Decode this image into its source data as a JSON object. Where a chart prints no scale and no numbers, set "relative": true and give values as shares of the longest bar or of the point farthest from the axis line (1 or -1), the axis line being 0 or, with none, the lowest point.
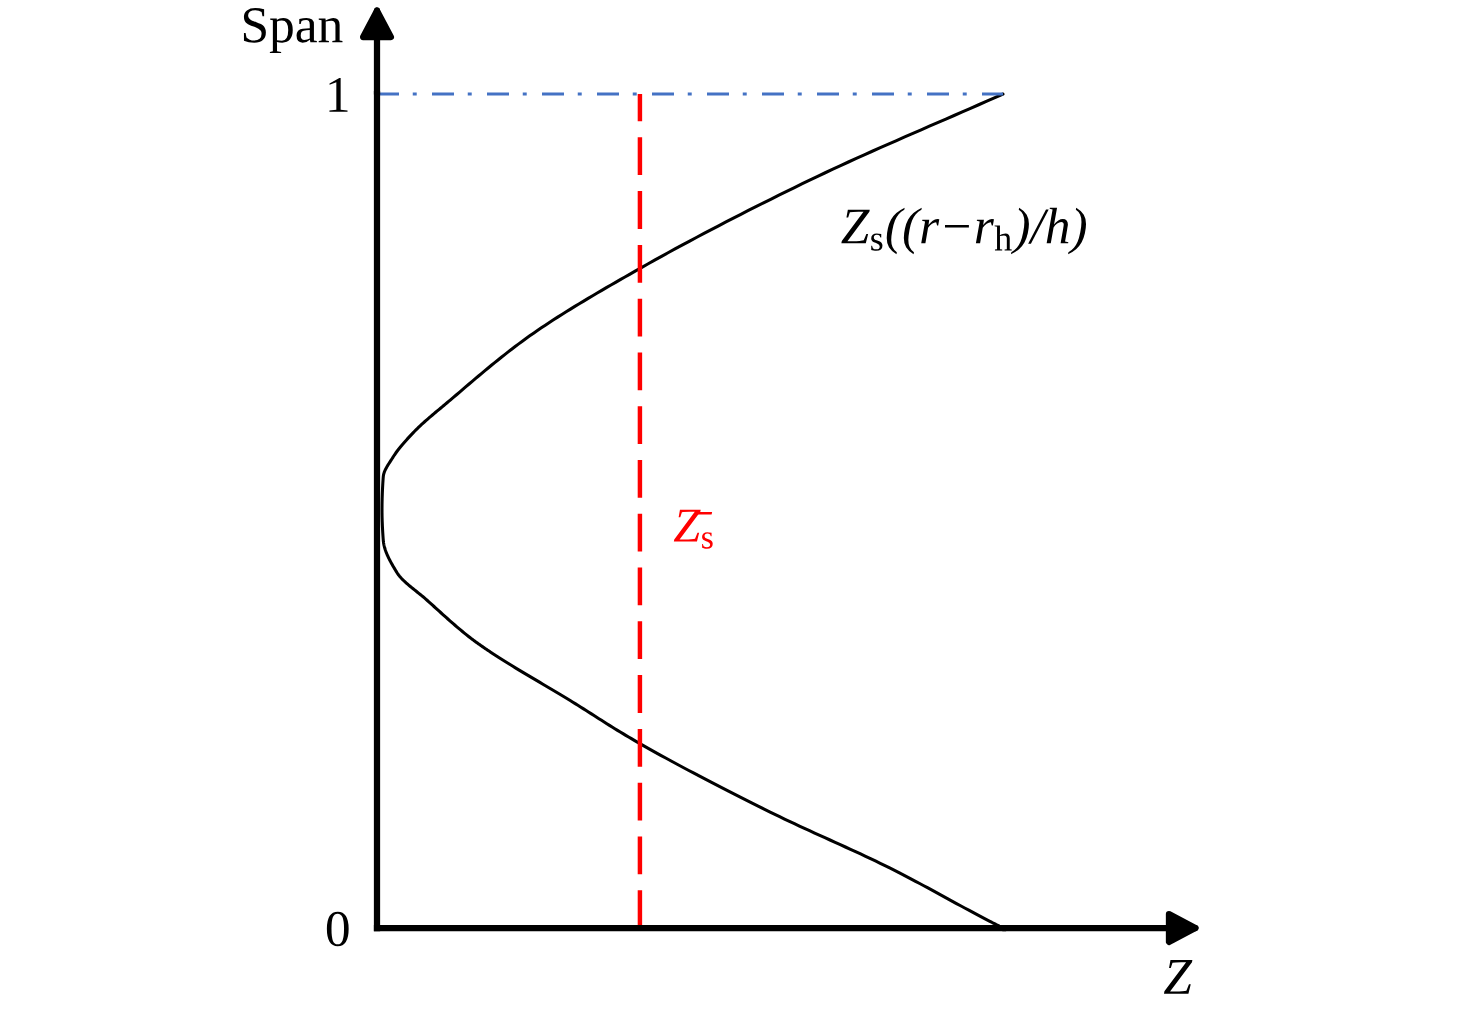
{
  "chart_data": {
    "type": "line",
    "orientation": "horizontal",
    "relative": true,
    "xlabel": "Z",
    "ylabel": "Span",
    "ylim": [
      0,
      1
    ],
    "yticks": [
      0,
      1
    ],
    "tick_labels": "y",
    "line_style": "solid",
    "series": [
      {
        "name": "Z$_{s}$((r−r$_{h}$)/h)",
        "color": "#000000",
        "x": [
          1,
          0.897,
          0.787,
          0.71,
          0.633,
          0.594,
          0.565,
          0.541,
          0.501,
          0.465,
          0.426,
          0.393,
          0.348,
          0.331,
          0.273,
          0.225,
          0.139,
          0.072,
          0.008,
          0
        ],
        "values": [
          1,
          0.692,
          0.411,
          0.244,
          0.117,
          0.058,
          0.026,
          0.01,
          0.008,
          0.01,
          0.032,
          0.08,
          0.149,
          0.181,
          0.308,
          0.411,
          0.628,
          0.819,
          0.979,
          1
        ]
      }
    ],
    "ref_lines": [
      {
        "axis": "x",
        "value": 0.42,
        "label": "Z̄$_{s}$",
        "color": "#ff0000",
        "line_style": "dashed"
      },
      {
        "axis": "y",
        "value": 1,
        "color": "#4472c4",
        "line_style": "dashdot"
      }
    ]
  }
}
